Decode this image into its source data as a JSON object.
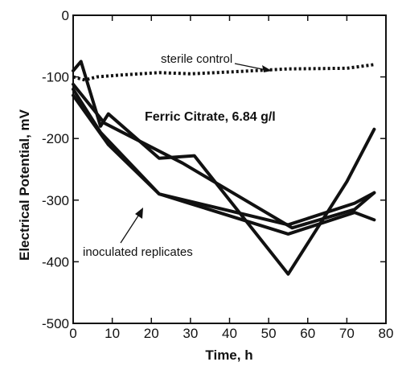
{
  "chart_data": {
    "type": "line",
    "xlabel": "Time,  h",
    "ylabel": "Electrical  Potential,  mV",
    "xlim": [
      0,
      80
    ],
    "ylim": [
      -500,
      0
    ],
    "x_ticks": [
      0,
      10,
      20,
      30,
      40,
      50,
      60,
      70,
      80
    ],
    "y_ticks": [
      0,
      -100,
      -200,
      -300,
      -400,
      -500
    ],
    "x_tick_labels": [
      "0",
      "10",
      "20",
      "30",
      "40",
      "50",
      "60",
      "70",
      "80"
    ],
    "y_tick_labels": [
      "0",
      "-100",
      "-200",
      "-300",
      "-400",
      "-500"
    ],
    "grid": false,
    "series": [
      {
        "name": "sterile control",
        "style": "dotted",
        "x": [
          0,
          3,
          6,
          12,
          22,
          30,
          40,
          55,
          70,
          77
        ],
        "y": [
          -100,
          -105,
          -100,
          -97,
          -93,
          -95,
          -92,
          -87,
          -86,
          -80
        ]
      },
      {
        "style": "solid",
        "x": [
          0,
          2,
          7,
          9,
          22,
          31,
          55,
          70,
          77
        ],
        "y": [
          -90,
          -75,
          -180,
          -160,
          -232,
          -228,
          -420,
          -270,
          -185
        ]
      },
      {
        "style": "solid",
        "x": [
          0,
          7,
          22,
          55,
          72,
          77
        ],
        "y": [
          -120,
          -190,
          -290,
          -340,
          -305,
          -288
        ]
      },
      {
        "style": "solid",
        "x": [
          0,
          9,
          22,
          55,
          72,
          77
        ],
        "y": [
          -130,
          -210,
          -290,
          -355,
          -320,
          -332
        ]
      },
      {
        "style": "solid",
        "x": [
          0,
          8,
          28,
          56,
          72,
          77
        ],
        "y": [
          -112,
          -175,
          -240,
          -345,
          -315,
          -288
        ]
      }
    ],
    "annotations": [
      {
        "text": "sterile control"
      },
      {
        "text": "Ferric  Citrate,  6.84  g/l"
      },
      {
        "text": "inoculated replicates"
      }
    ]
  }
}
